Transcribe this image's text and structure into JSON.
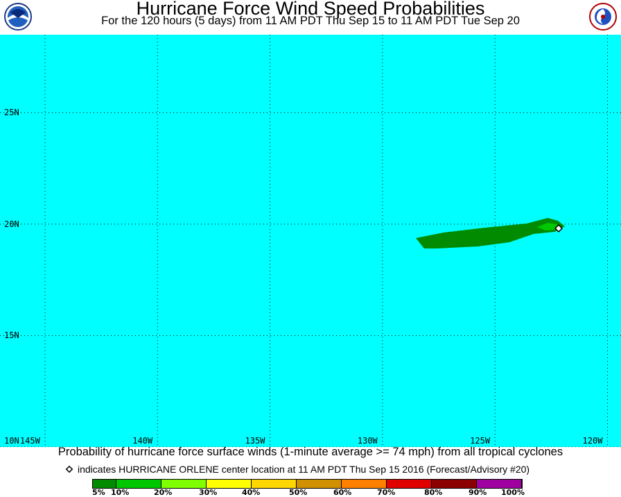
{
  "header": {
    "title": "Hurricane Force Wind Speed Probabilities",
    "subtitle": "For the 120 hours (5 days) from 11 AM PDT Thu Sep 15 to 11 AM PDT Tue Sep 20"
  },
  "logos": {
    "left": {
      "text": "NOAA"
    },
    "right": {
      "text": "NATIONAL WEATHER SERVICE"
    }
  },
  "map": {
    "lat_range": [
      10,
      28.5
    ],
    "lon_range": [
      -147,
      -119.4
    ],
    "lat_labels": [
      {
        "value": 25,
        "label": "25N"
      },
      {
        "value": 20,
        "label": "20N"
      },
      {
        "value": 15,
        "label": "15N"
      },
      {
        "value": 10,
        "label": "10N"
      }
    ],
    "lon_labels": [
      {
        "value": -145,
        "label": "145W"
      },
      {
        "value": -140,
        "label": "140W"
      },
      {
        "value": -135,
        "label": "135W"
      },
      {
        "value": -130,
        "label": "130W"
      },
      {
        "value": -125,
        "label": "125W"
      },
      {
        "value": -120,
        "label": "120W"
      }
    ],
    "storm_center": {
      "lon": -122.1,
      "lat": 19.9
    },
    "colors": {
      "ocean": "#00ffff",
      "band_5": "#008b00",
      "band_10": "#00c800",
      "center_fill": "#ffffff"
    }
  },
  "caption": "Probability of hurricane force surface winds (1-minute average >= 74 mph) from all tropical cyclones",
  "marker_note": "indicates HURRICANE ORLENE center location at 11 AM PDT Thu Sep 15 2016 (Forecast/Advisory #20)",
  "legend": {
    "bands": [
      {
        "color": "#008b00"
      },
      {
        "color": "#00c800"
      },
      {
        "color": "#80ff00"
      },
      {
        "color": "#ffff00"
      },
      {
        "color": "#ffd700"
      },
      {
        "color": "#d09000"
      },
      {
        "color": "#ff8000"
      },
      {
        "color": "#e00000"
      },
      {
        "color": "#8b0000"
      },
      {
        "color": "#a000a0"
      }
    ],
    "labels": [
      "5%",
      "10%",
      "20%",
      "30%",
      "40%",
      "50%",
      "60%",
      "70%",
      "80%",
      "90%",
      "100%"
    ]
  }
}
